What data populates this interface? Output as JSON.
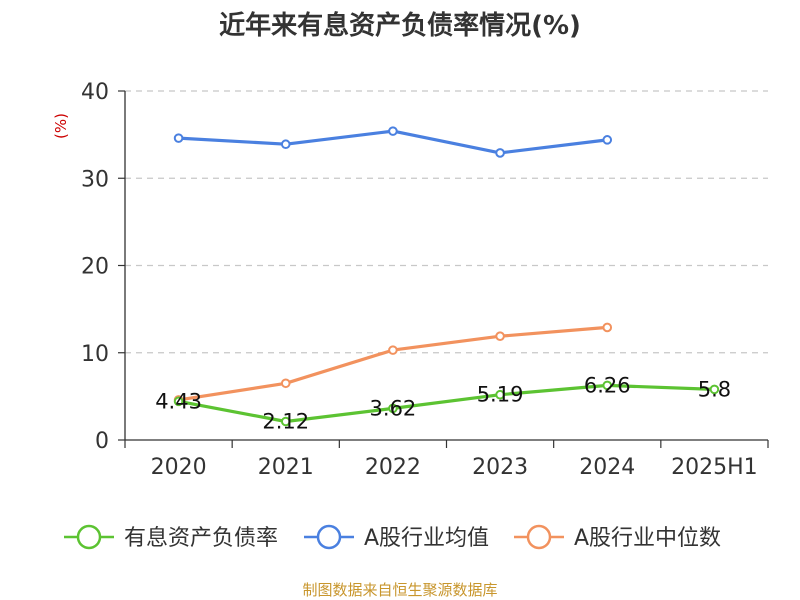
{
  "chart_data": {
    "type": "line",
    "title": "近年来有息资产负债率情况(%)",
    "y_unit": "(%)",
    "categories": [
      "2020",
      "2021",
      "2022",
      "2023",
      "2024",
      "2025H1"
    ],
    "ylim": [
      0,
      40
    ],
    "yticks": [
      "0",
      "10",
      "20",
      "30",
      "40"
    ],
    "grid": true,
    "legend_position": "bottom",
    "series": [
      {
        "name": "有息资产负债率",
        "color": "#5cc332",
        "values": [
          4.43,
          2.12,
          3.62,
          5.19,
          6.26,
          5.8
        ],
        "labels": [
          "4.43",
          "2.12",
          "3.62",
          "5.19",
          "6.26",
          "5.8"
        ]
      },
      {
        "name": "A股行业均值",
        "color": "#4a80e0",
        "values": [
          34.6,
          33.9,
          35.4,
          32.9,
          34.4,
          null
        ]
      },
      {
        "name": "A股行业中位数",
        "color": "#f2925e",
        "values": [
          4.6,
          6.5,
          10.3,
          11.9,
          12.9,
          null
        ]
      }
    ],
    "source": "制图数据来自恒生聚源数据库"
  }
}
